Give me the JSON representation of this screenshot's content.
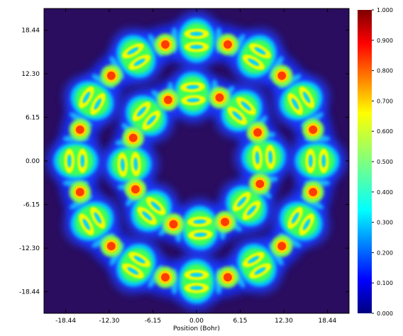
{
  "chart_data": {
    "type": "heatmap",
    "title": "",
    "xlabel": "Position (Bohr)",
    "ylabel": "",
    "x_ticks": [
      "-18.44",
      "-12.30",
      "-6.15",
      "0.00",
      "6.15",
      "12.30",
      "18.44"
    ],
    "y_ticks": [
      "18.44",
      "12.30",
      "6.15",
      "0.00",
      "-6.15",
      "-12.30",
      "-18.44"
    ],
    "xlim": [
      -21.5,
      21.5
    ],
    "ylim": [
      -21.5,
      21.5
    ],
    "colorbar": {
      "ticks": [
        "1.000",
        "0.900",
        "0.800",
        "0.700",
        "0.600",
        "0.500",
        "0.400",
        "0.300",
        "0.200",
        "0.100",
        "0.000"
      ],
      "range": [
        0,
        1
      ],
      "colormap": "jet"
    },
    "background_color": "#2a0d5e",
    "rings": [
      {
        "name": "inner",
        "radius": 9.5,
        "lobes": 8,
        "lobe_angle_offset_deg": 3,
        "atoms": 8,
        "atom_angle_offset_deg": 25
      },
      {
        "name": "outer",
        "radius": 17.0,
        "lobes": 12,
        "lobe_angle_offset_deg": 0,
        "atoms": 12,
        "atom_angle_offset_deg": 15
      }
    ],
    "atom_value": 1.0,
    "lobe_core_value": 0.55,
    "lobe_shell_value": 0.2
  }
}
